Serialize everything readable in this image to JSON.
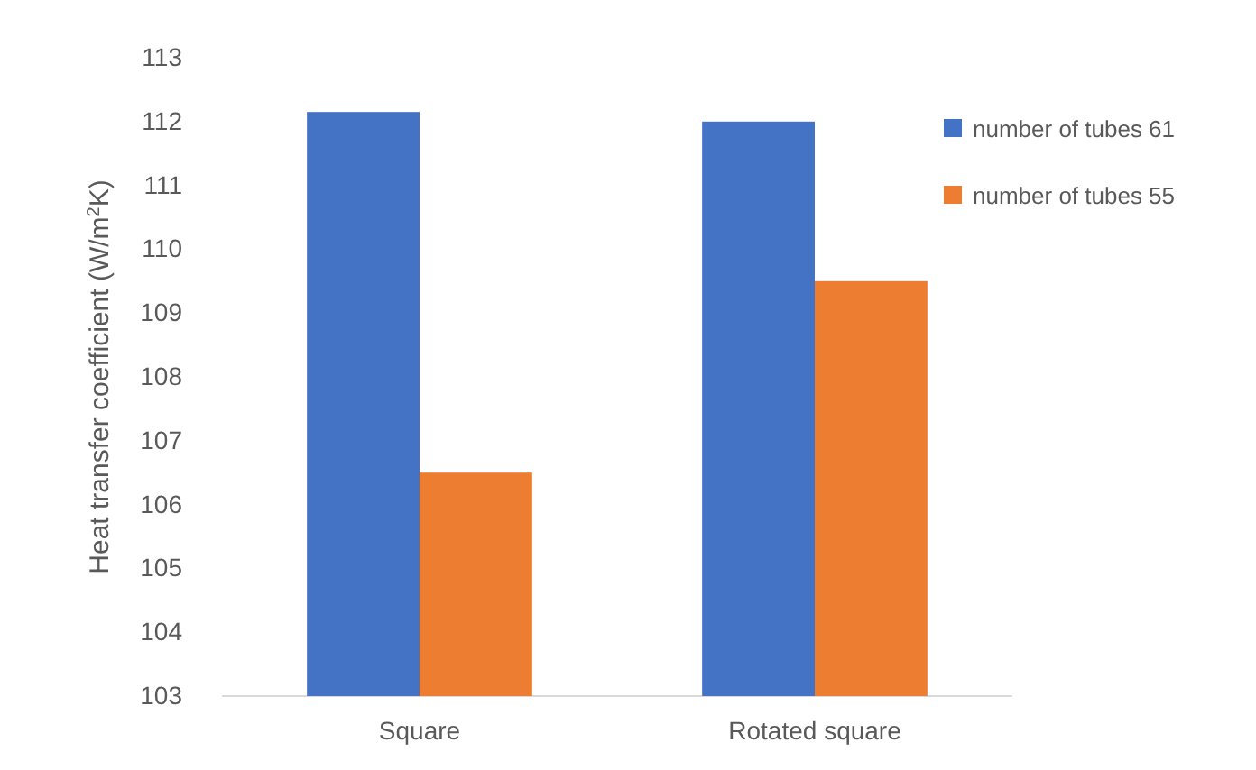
{
  "chart_data": {
    "type": "bar",
    "ylabel": "Heat transfer coefficient (W/m$^{2}$K)",
    "categories": [
      "Square",
      "Rotated square"
    ],
    "series": [
      {
        "name": "number of tubes 61",
        "color": "#4472c4",
        "values": [
          112.15,
          112.0
        ]
      },
      {
        "name": "number of tubes 55",
        "color": "#ed7d31",
        "values": [
          106.5,
          109.5
        ]
      }
    ],
    "ylim": [
      103,
      113
    ],
    "yticks": [
      103,
      104,
      105,
      106,
      107,
      108,
      109,
      110,
      111,
      112,
      113
    ],
    "grid": false,
    "legend": "top right"
  }
}
